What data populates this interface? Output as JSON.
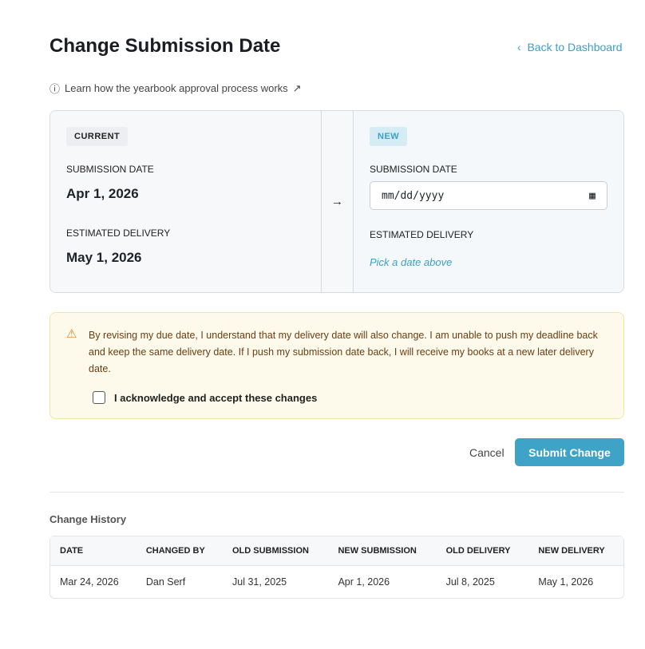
{
  "header": {
    "title": "Change Submission Date",
    "back_label": "Back to Dashboard",
    "learn_label": "Learn how the yearbook approval process works"
  },
  "current": {
    "badge": "CURRENT",
    "submission_label": "SUBMISSION DATE",
    "submission_value": "Apr 1, 2026",
    "delivery_label": "ESTIMATED DELIVERY",
    "delivery_value": "May 1, 2026"
  },
  "new": {
    "badge": "NEW",
    "submission_label": "SUBMISSION DATE",
    "date_placeholder": "mm/dd/yyyy",
    "delivery_label": "ESTIMATED DELIVERY",
    "delivery_hint": "Pick a date above"
  },
  "warning": {
    "text": "By revising my due date, I understand that my delivery date will also change. I am unable to push my deadline back and keep the same delivery date. If I push my submission date back, I will receive my books at a new later delivery date.",
    "ack_label": "I acknowledge and accept these changes",
    "ack_checked": false
  },
  "actions": {
    "cancel": "Cancel",
    "submit": "Submit Change"
  },
  "history": {
    "title": "Change History",
    "columns": [
      "DATE",
      "CHANGED BY",
      "OLD SUBMISSION",
      "NEW SUBMISSION",
      "OLD DELIVERY",
      "NEW DELIVERY"
    ],
    "rows": [
      [
        "Mar 24, 2026",
        "Dan Serf",
        "Jul 31, 2025",
        "Apr 1, 2026",
        "Jul 8, 2025",
        "May 1, 2026"
      ]
    ]
  },
  "colors": {
    "accent": "#3ea3c7",
    "warning_bg": "#fefaeb",
    "warning_text": "#6b3d12"
  }
}
